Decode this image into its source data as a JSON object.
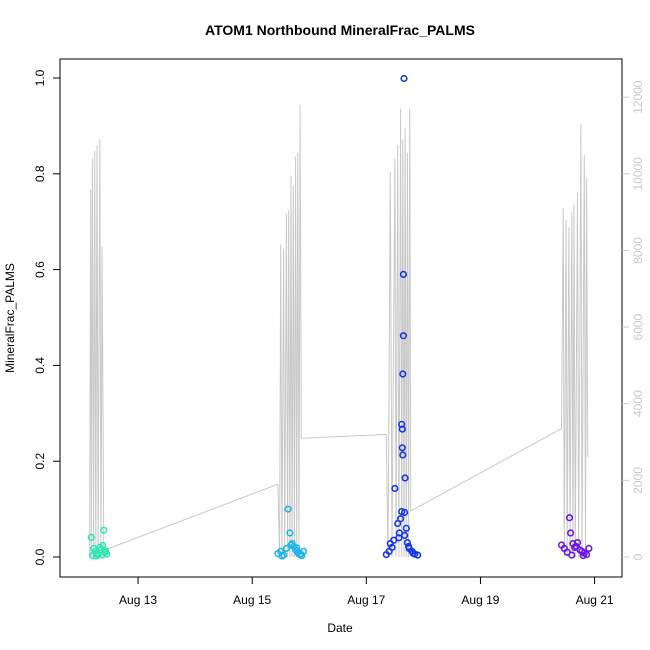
{
  "chart_data": {
    "type": "scatter",
    "title": "ATOM1 Northbound MineralFrac_PALMS",
    "xlabel": "Date",
    "ylabel": "MineralFrac_PALMS",
    "x_ticks": [
      "Aug 13",
      "Aug 15",
      "Aug 17",
      "Aug 19",
      "Aug 21"
    ],
    "x_tick_days": [
      13,
      15,
      17,
      19,
      21
    ],
    "xlim": [
      12.0,
      21.2
    ],
    "ylim": [
      0,
      1.0
    ],
    "y_ticks": [
      "0.0",
      "0.2",
      "0.4",
      "0.6",
      "0.8",
      "1.0"
    ],
    "y_tick_values": [
      0.0,
      0.2,
      0.4,
      0.6,
      0.8,
      1.0
    ],
    "y2lim": [
      0,
      12500
    ],
    "y2_ticks": [
      "0",
      "2000",
      "4000",
      "6000",
      "8000",
      "10000",
      "12000"
    ],
    "y2_tick_values": [
      0,
      2000,
      4000,
      6000,
      8000,
      10000,
      12000
    ],
    "y2_color": "#c8c8c8",
    "line_color": "#c8c8c8",
    "series": [
      {
        "color": "#2ee8b4",
        "points": [
          [
            12.18,
            0.041
          ],
          [
            12.22,
            0.018
          ],
          [
            12.25,
            0.012
          ],
          [
            12.28,
            0.008
          ],
          [
            12.3,
            0.005
          ],
          [
            12.33,
            0.02
          ],
          [
            12.35,
            0.015
          ],
          [
            12.38,
            0.024
          ],
          [
            12.4,
            0.056
          ],
          [
            12.42,
            0.01
          ],
          [
            12.45,
            0.006
          ],
          [
            12.2,
            0.003
          ],
          [
            12.27,
            0.002
          ],
          [
            12.37,
            0.004
          ],
          [
            12.43,
            0.013
          ]
        ]
      },
      {
        "color": "#1cb6ea",
        "points": [
          [
            15.45,
            0.007
          ],
          [
            15.5,
            0.012
          ],
          [
            15.55,
            0.004
          ],
          [
            15.6,
            0.018
          ],
          [
            15.63,
            0.1
          ],
          [
            15.66,
            0.05
          ],
          [
            15.7,
            0.028
          ],
          [
            15.73,
            0.022
          ],
          [
            15.76,
            0.015
          ],
          [
            15.8,
            0.009
          ],
          [
            15.83,
            0.005
          ],
          [
            15.87,
            0.003
          ],
          [
            15.9,
            0.012
          ],
          [
            15.52,
            0.002
          ],
          [
            15.68,
            0.025
          ],
          [
            15.78,
            0.019
          ],
          [
            15.85,
            0.006
          ]
        ]
      },
      {
        "color": "#1535e8",
        "points": [
          [
            17.35,
            0.005
          ],
          [
            17.4,
            0.012
          ],
          [
            17.45,
            0.02
          ],
          [
            17.5,
            0.143
          ],
          [
            17.55,
            0.07
          ],
          [
            17.58,
            0.05
          ],
          [
            17.6,
            0.08
          ],
          [
            17.62,
            0.095
          ],
          [
            17.62,
            0.277
          ],
          [
            17.63,
            0.267
          ],
          [
            17.63,
            0.228
          ],
          [
            17.64,
            0.213
          ],
          [
            17.64,
            0.382
          ],
          [
            17.65,
            0.462
          ],
          [
            17.65,
            0.59
          ],
          [
            17.66,
            0.999
          ],
          [
            17.67,
            0.093
          ],
          [
            17.68,
            0.165
          ],
          [
            17.7,
            0.06
          ],
          [
            17.72,
            0.03
          ],
          [
            17.75,
            0.018
          ],
          [
            17.8,
            0.012
          ],
          [
            17.85,
            0.006
          ],
          [
            17.9,
            0.004
          ],
          [
            17.42,
            0.028
          ],
          [
            17.48,
            0.035
          ],
          [
            17.57,
            0.04
          ],
          [
            17.67,
            0.045
          ],
          [
            17.74,
            0.022
          ],
          [
            17.82,
            0.008
          ]
        ]
      },
      {
        "color": "#6a17e0",
        "points": [
          [
            20.42,
            0.025
          ],
          [
            20.47,
            0.018
          ],
          [
            20.52,
            0.01
          ],
          [
            20.56,
            0.082
          ],
          [
            20.58,
            0.05
          ],
          [
            20.62,
            0.028
          ],
          [
            20.65,
            0.02
          ],
          [
            20.7,
            0.03
          ],
          [
            20.74,
            0.015
          ],
          [
            20.78,
            0.012
          ],
          [
            20.82,
            0.008
          ],
          [
            20.86,
            0.005
          ],
          [
            20.9,
            0.018
          ],
          [
            20.6,
            0.004
          ],
          [
            20.68,
            0.022
          ],
          [
            20.8,
            0.003
          ]
        ]
      }
    ],
    "secondary_line": {
      "points": [
        [
          12.15,
          0
        ],
        [
          12.17,
          9600
        ],
        [
          12.18,
          0
        ],
        [
          12.2,
          10400
        ],
        [
          12.22,
          0
        ],
        [
          12.24,
          10600
        ],
        [
          12.26,
          0
        ],
        [
          12.28,
          10750
        ],
        [
          12.3,
          0
        ],
        [
          12.33,
          10900
        ],
        [
          12.35,
          0
        ],
        [
          12.37,
          8100
        ],
        [
          12.4,
          0
        ],
        [
          12.45,
          200
        ],
        [
          15.45,
          1900
        ],
        [
          15.48,
          0
        ],
        [
          15.5,
          8150
        ],
        [
          15.52,
          0
        ],
        [
          15.55,
          8050
        ],
        [
          15.57,
          0
        ],
        [
          15.6,
          8950
        ],
        [
          15.62,
          0
        ],
        [
          15.64,
          9050
        ],
        [
          15.66,
          0
        ],
        [
          15.68,
          9950
        ],
        [
          15.7,
          0
        ],
        [
          15.72,
          9700
        ],
        [
          15.74,
          0
        ],
        [
          15.76,
          10450
        ],
        [
          15.78,
          0
        ],
        [
          15.8,
          10550
        ],
        [
          15.82,
          0
        ],
        [
          15.84,
          11800
        ],
        [
          15.86,
          3100
        ],
        [
          17.35,
          3200
        ],
        [
          17.38,
          0
        ],
        [
          17.42,
          10050
        ],
        [
          17.45,
          0
        ],
        [
          17.5,
          10400
        ],
        [
          17.52,
          0
        ],
        [
          17.55,
          10750
        ],
        [
          17.57,
          0
        ],
        [
          17.6,
          11700
        ],
        [
          17.62,
          0
        ],
        [
          17.64,
          10900
        ],
        [
          17.66,
          0
        ],
        [
          17.68,
          11200
        ],
        [
          17.7,
          0
        ],
        [
          17.72,
          10550
        ],
        [
          17.74,
          0
        ],
        [
          17.76,
          11700
        ],
        [
          17.78,
          1200
        ],
        [
          20.42,
          3350
        ],
        [
          20.45,
          9100
        ],
        [
          20.47,
          0
        ],
        [
          20.5,
          8800
        ],
        [
          20.52,
          0
        ],
        [
          20.55,
          8600
        ],
        [
          20.57,
          0
        ],
        [
          20.6,
          9000
        ],
        [
          20.62,
          0
        ],
        [
          20.64,
          9200
        ],
        [
          20.66,
          0
        ],
        [
          20.7,
          9500
        ],
        [
          20.72,
          0
        ],
        [
          20.76,
          11300
        ],
        [
          20.78,
          0
        ],
        [
          20.82,
          10500
        ],
        [
          20.84,
          0
        ],
        [
          20.86,
          9900
        ],
        [
          20.88,
          2600
        ]
      ]
    }
  }
}
